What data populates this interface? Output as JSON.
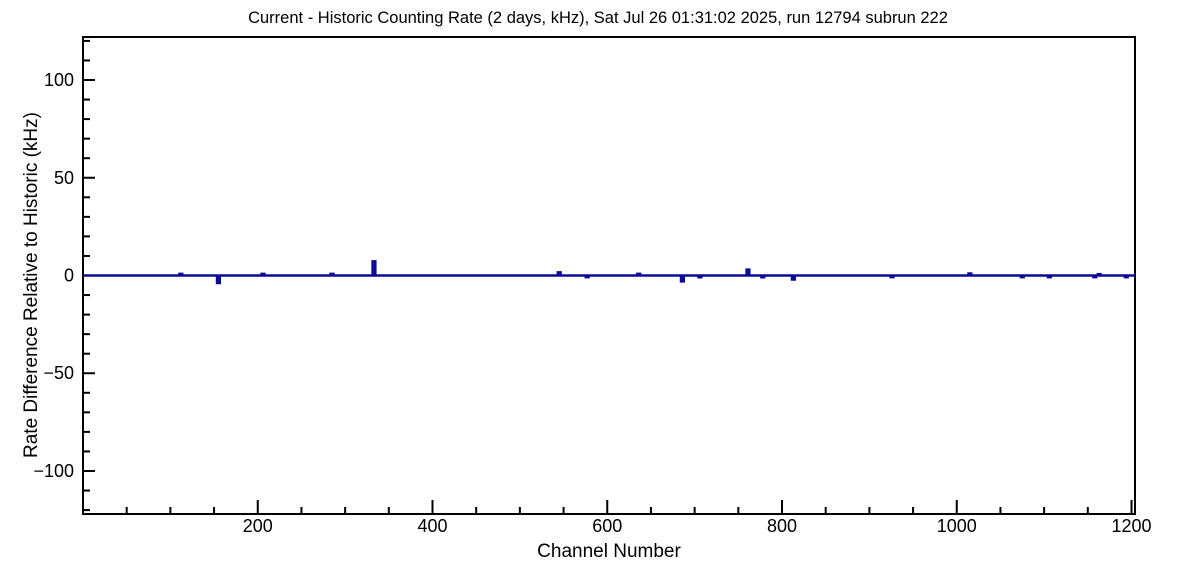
{
  "title": "Current - Historic Counting Rate (2 days, kHz), Sat Jul 26 01:31:02 2025, run 12794 subrun 222",
  "colors": {
    "background": "#ffffff",
    "frame": "#000000",
    "text": "#000000",
    "line": "#0a0a96"
  },
  "chart_data": {
    "type": "line",
    "style": "histogram-step-spikes",
    "title": "Current - Historic Counting Rate (2 days, kHz), Sat Jul 26 01:31:02 2025, run 12794 subrun 222",
    "xlabel": "Channel Number",
    "ylabel": "Rate Difference Relative to Historic (kHz)",
    "xlim": [
      0,
      1204
    ],
    "ylim": [
      -122,
      122
    ],
    "x_major_ticks": [
      200,
      400,
      600,
      800,
      1000,
      1200
    ],
    "x_minor_step": 50,
    "y_major_ticks": [
      -100,
      -50,
      0,
      50,
      100
    ],
    "y_minor_step": 10,
    "grid": false,
    "legend": "none",
    "line_color": "#0a0a96",
    "baseline_value": 0,
    "spikes": [
      {
        "channel": 112,
        "value": 0.8
      },
      {
        "channel": 155,
        "value": -3.8
      },
      {
        "channel": 206,
        "value": 0.8
      },
      {
        "channel": 285,
        "value": 0.8
      },
      {
        "channel": 333,
        "value": 7.2
      },
      {
        "channel": 545,
        "value": 1.6
      },
      {
        "channel": 577,
        "value": -0.8
      },
      {
        "channel": 636,
        "value": 0.8
      },
      {
        "channel": 686,
        "value": -3.0
      },
      {
        "channel": 706,
        "value": -0.9
      },
      {
        "channel": 761,
        "value": 3.0
      },
      {
        "channel": 778,
        "value": -0.9
      },
      {
        "channel": 813,
        "value": -2.0
      },
      {
        "channel": 926,
        "value": -0.8
      },
      {
        "channel": 1015,
        "value": 1.0
      },
      {
        "channel": 1075,
        "value": -0.8
      },
      {
        "channel": 1106,
        "value": -0.8
      },
      {
        "channel": 1158,
        "value": -0.8
      },
      {
        "channel": 1163,
        "value": 0.6
      },
      {
        "channel": 1194,
        "value": -0.8
      }
    ]
  }
}
